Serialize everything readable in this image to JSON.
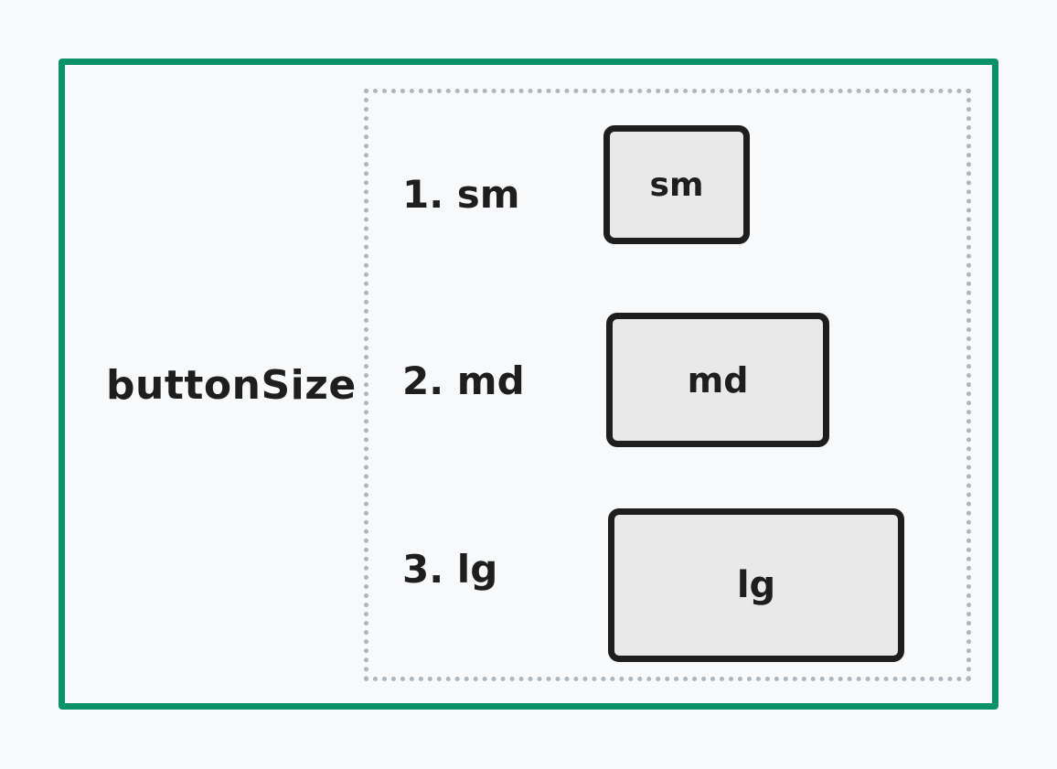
{
  "property": {
    "name": "buttonSize"
  },
  "options": [
    {
      "index_label": "1. sm",
      "button_text": "sm"
    },
    {
      "index_label": "2. md",
      "button_text": "md"
    },
    {
      "index_label": "3. lg",
      "button_text": "lg"
    }
  ],
  "colors": {
    "frame": "#099268",
    "dotted_border": "#adb5bd",
    "button_fill": "#e9e9e9",
    "stroke": "#1e1e1e",
    "background": "#f8f9fa"
  }
}
